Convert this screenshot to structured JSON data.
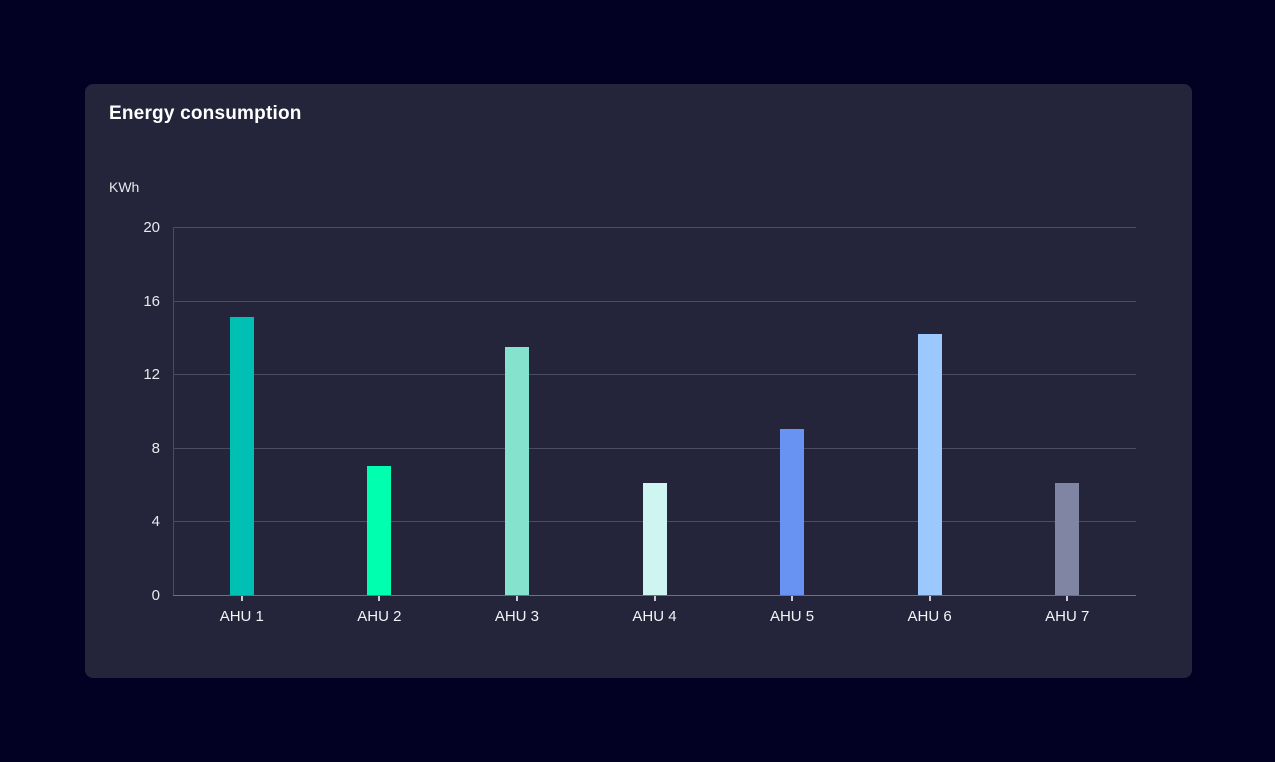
{
  "card": {
    "title": "Energy consumption"
  },
  "chart_data": {
    "type": "bar",
    "title": "Energy consumption",
    "ylabel": "KWh",
    "xlabel": "",
    "categories": [
      "AHU 1",
      "AHU 2",
      "AHU 3",
      "AHU 4",
      "AHU 5",
      "AHU 6",
      "AHU 7"
    ],
    "values": [
      15.1,
      7.0,
      13.5,
      6.1,
      9.0,
      14.2,
      6.1
    ],
    "bar_colors": [
      "#00BFB3",
      "#00FFAE",
      "#85E3CD",
      "#CFF5F3",
      "#6893F3",
      "#9BC8FD",
      "#7F85A2"
    ],
    "ylim": [
      0,
      20
    ],
    "yticks": [
      0,
      4,
      8,
      12,
      16,
      20
    ],
    "grid": true,
    "legend": false
  },
  "colors": {
    "page_bg": "#020023",
    "card_bg": "#24243A",
    "grid": "#4A4C66",
    "axis": "#6E7089",
    "tick": "#C9CAD4",
    "title_text": "#FFFFFF",
    "label_text": "#E8E8EE",
    "label_text_bright": "#F4F4F7"
  }
}
